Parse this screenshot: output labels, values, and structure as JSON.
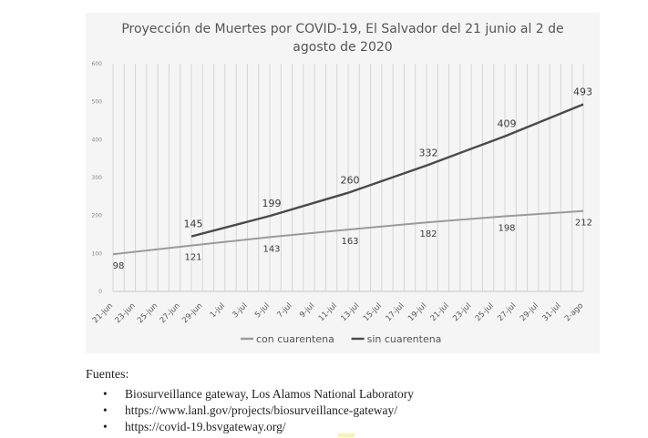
{
  "chart_data": {
    "type": "line",
    "title_line1": "Proyección de Muertes por COVID-19, El Salvador del 21 junio al 2 de",
    "title_line2": "agosto de 2020",
    "ylim": [
      0,
      600
    ],
    "yticks": [
      0,
      100,
      200,
      300,
      400,
      500,
      600
    ],
    "xtick_labels": [
      "21-jun",
      "23-jun",
      "25-jun",
      "27-jun",
      "29-jun",
      "1-jul",
      "3-jul",
      "5-jul",
      "7-jul",
      "9-jul",
      "11-jul",
      "13-jul",
      "15-jul",
      "17-jul",
      "19-jul",
      "21-jul",
      "23-jul",
      "25-jul",
      "27-jul",
      "29-jul",
      "31-jul",
      "2-ago"
    ],
    "legend_position": "bottom",
    "grid": "vertical",
    "series": [
      {
        "name": "con cuarentena",
        "color": "#9a9a9a",
        "x": [
          "21-jun",
          "28-jun",
          "5-jul",
          "12-jul",
          "19-jul",
          "26-jul",
          "2-ago"
        ],
        "values": [
          98,
          121,
          143,
          163,
          182,
          198,
          212
        ],
        "labels": [
          "98",
          "121",
          "143",
          "163",
          "182",
          "198",
          "212"
        ]
      },
      {
        "name": "sin cuarentena",
        "color": "#4a4a4a",
        "x": [
          "28-jun",
          "5-jul",
          "12-jul",
          "19-jul",
          "26-jul",
          "2-ago"
        ],
        "values": [
          145,
          199,
          260,
          332,
          409,
          493
        ],
        "labels": [
          "145",
          "199",
          "260",
          "332",
          "409",
          "493"
        ]
      }
    ]
  },
  "sources": {
    "heading": "Fuentes:",
    "items": [
      "Biosurveillance gateway, Los Alamos National Laboratory",
      "https://www.lanl.gov/projects/biosurveillance-gateway/",
      "https://covid-19.bsvgateway.org/"
    ]
  }
}
